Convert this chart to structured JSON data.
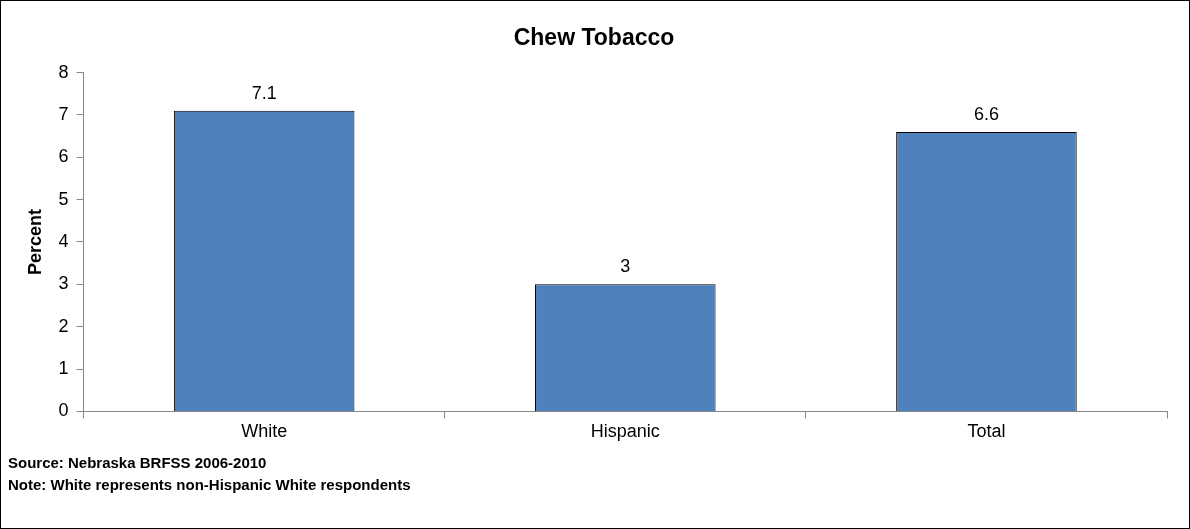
{
  "chart_data": {
    "type": "bar",
    "title": "Chew Tobacco",
    "ylabel": "Percent",
    "categories": [
      "White",
      "Hispanic",
      "Total"
    ],
    "values": [
      7.1,
      3,
      6.6
    ],
    "color": "#4f81bd",
    "ylim": [
      0,
      8
    ],
    "yticks": [
      0,
      1,
      2,
      3,
      4,
      5,
      6,
      7,
      8
    ],
    "grid": false,
    "legend": false,
    "data_labels": true,
    "annotations": [
      "Source: Nebraska BRFSS 2006-2010",
      "Note: White represents non-Hispanic White respondents"
    ]
  }
}
